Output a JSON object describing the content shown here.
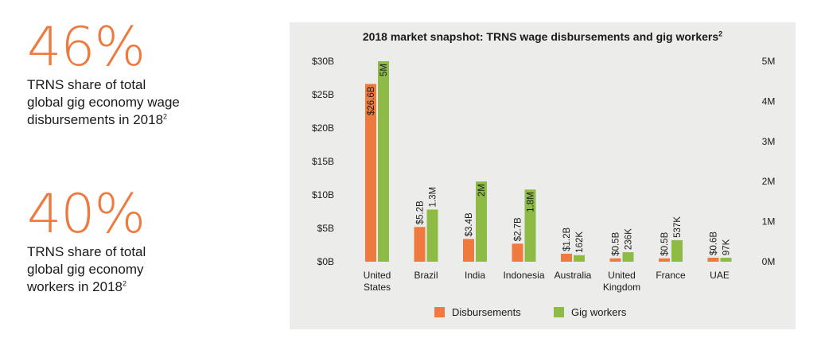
{
  "stats": [
    {
      "value": "46%",
      "lines": [
        "TRNS share of total",
        "global gig economy wage",
        "disbursements in 2018"
      ],
      "footnote": "2"
    },
    {
      "value": "40%",
      "lines": [
        "TRNS share of total",
        "global gig economy",
        "workers in 2018"
      ],
      "footnote": "2"
    }
  ],
  "colors": {
    "accent": "#ee7a3f",
    "disbursements": "#ee7a3f",
    "workers": "#8dbb45",
    "panel": "#ececea"
  },
  "chart_data": {
    "type": "bar",
    "title": "2018 market snapshot: TRNS wage disbursements and gig workers",
    "title_footnote": "2",
    "categories": [
      [
        "United",
        "States"
      ],
      [
        "Brazil"
      ],
      [
        "India"
      ],
      [
        "Indonesia"
      ],
      [
        "Australia"
      ],
      [
        "United",
        "Kingdom"
      ],
      [
        "France"
      ],
      [
        "UAE"
      ]
    ],
    "series": [
      {
        "name": "Disbursements",
        "axis": "left",
        "unit": "$B",
        "values": [
          26.6,
          5.2,
          3.4,
          2.7,
          1.2,
          0.5,
          0.5,
          0.6
        ],
        "labels": [
          "$26.6B",
          "$5.2B",
          "$3.4B",
          "$2.7B",
          "$1.2B",
          "$0.5B",
          "$0.5B",
          "$0.6B"
        ]
      },
      {
        "name": "Gig workers",
        "axis": "right",
        "unit": "M",
        "values": [
          5,
          1.3,
          2,
          1.8,
          0.162,
          0.236,
          0.537,
          0.097
        ],
        "labels": [
          "5M",
          "1.3M",
          "2M",
          "1.8M",
          "162K",
          "236K",
          "537K",
          "97K"
        ]
      }
    ],
    "y_left": {
      "range": [
        0,
        30
      ],
      "ticks": [
        0,
        5,
        10,
        15,
        20,
        25,
        30
      ],
      "tick_labels": [
        "$0B",
        "$5B",
        "$10B",
        "$15B",
        "$20B",
        "$25B",
        "$30B"
      ]
    },
    "y_right": {
      "range": [
        0,
        5
      ],
      "ticks": [
        0,
        1,
        2,
        3,
        4,
        5
      ],
      "tick_labels": [
        "0M",
        "1M",
        "2M",
        "3M",
        "4M",
        "5M"
      ]
    },
    "grid": false,
    "legend": "bottom-center"
  }
}
